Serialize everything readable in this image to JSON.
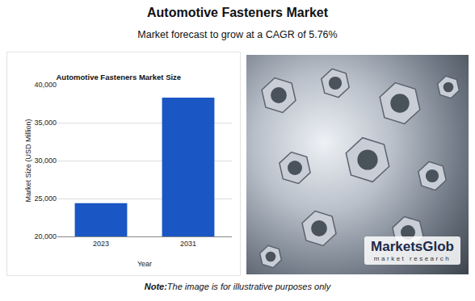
{
  "header": {
    "title": "Automotive Fasteners Market",
    "subtitle": "Market forecast to grow at a CAGR of 5.76%"
  },
  "chart_data": {
    "type": "bar",
    "title": "Automotive Fasteners Market Size",
    "x_label": "Year",
    "y_label": "Market Size (USD Million)",
    "categories": [
      "2023",
      "2031"
    ],
    "values": [
      24400,
      38300
    ],
    "color": "#1a56c4",
    "ylim": [
      20000,
      40000
    ],
    "yticks": [
      {
        "value": 20000,
        "label": "20,000"
      },
      {
        "value": 25000,
        "label": "25,000"
      },
      {
        "value": 30000,
        "label": "30,000"
      },
      {
        "value": 35000,
        "label": "35,000"
      },
      {
        "value": 40000,
        "label": "40,000"
      }
    ],
    "grid": true
  },
  "image": {
    "logo": {
      "name": "MarketsGlob",
      "tagline": "market research"
    }
  },
  "note": {
    "label": "Note:",
    "text": "The image is for illustrative purposes only"
  }
}
